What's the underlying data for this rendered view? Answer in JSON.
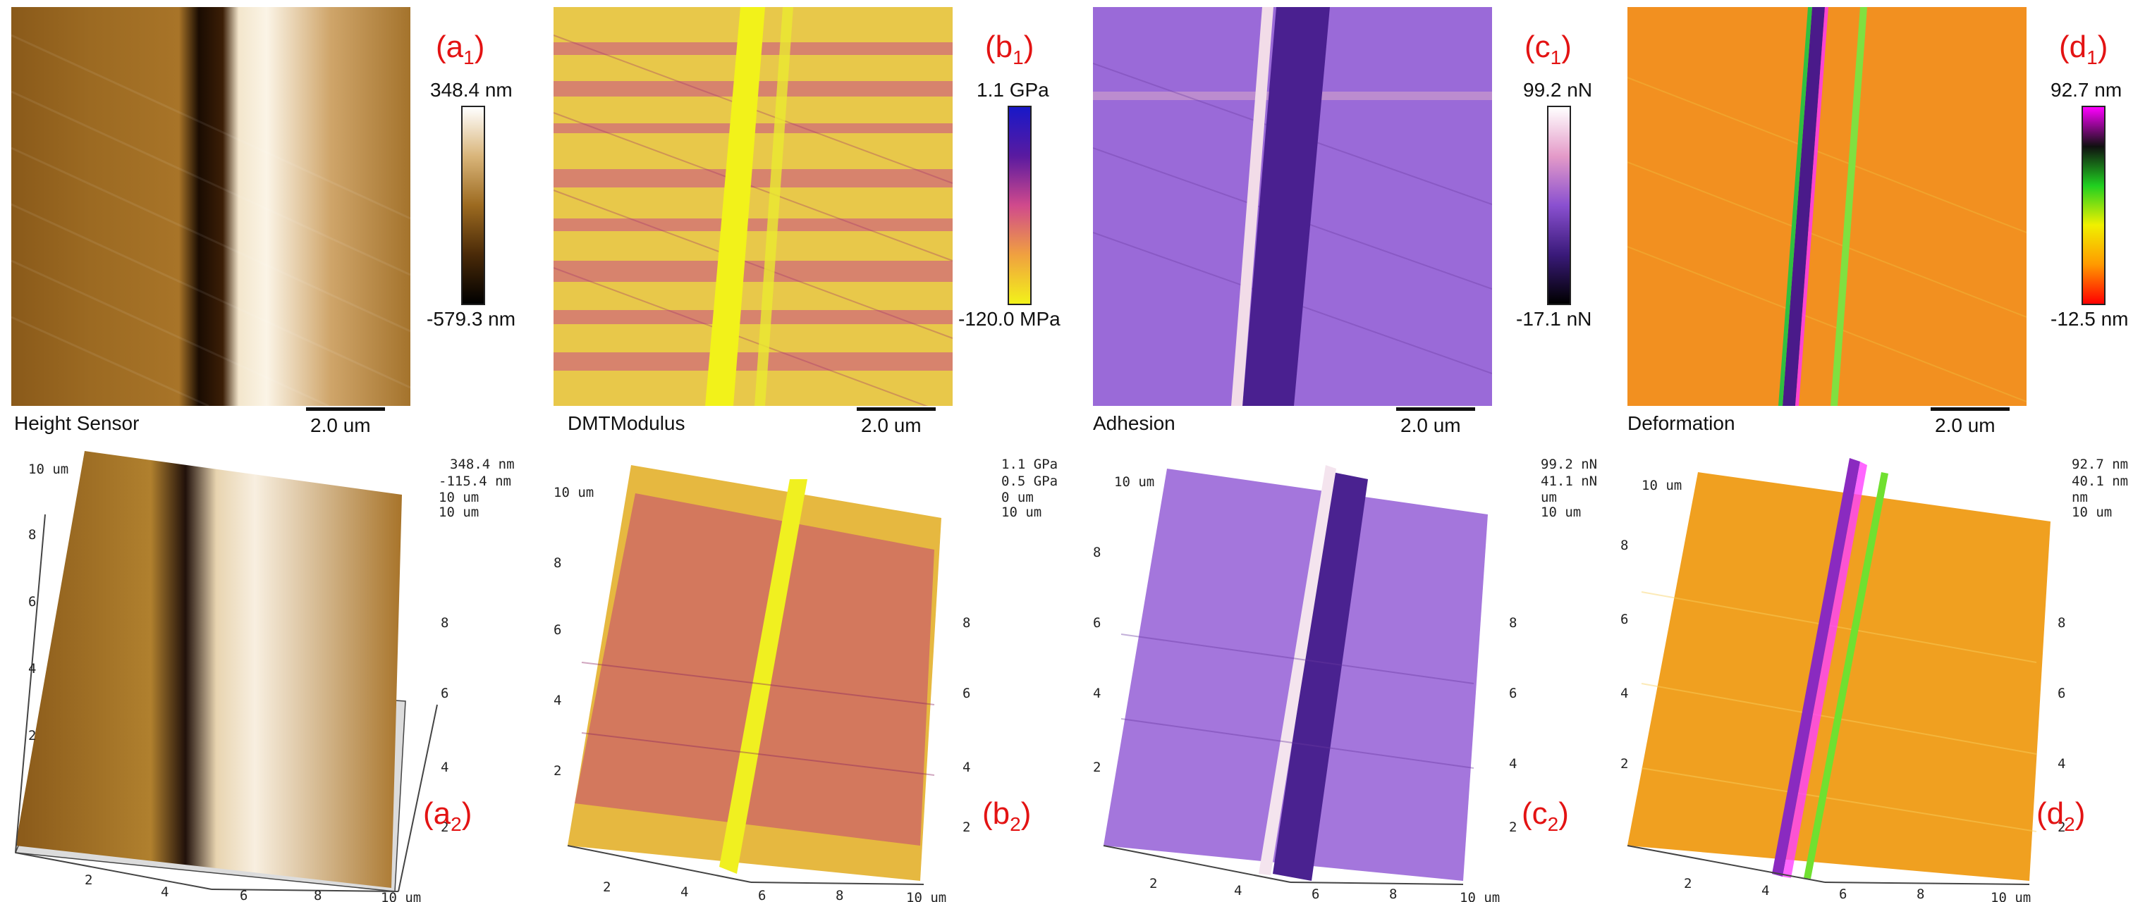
{
  "panels": [
    {
      "id": "a",
      "letter": "a",
      "sub1": "1",
      "sub2": "2",
      "map_title": "Height Sensor",
      "scale_bar": "2.0 um",
      "colorbar_max": "348.4 nm",
      "colorbar_min": "-579.3 nm",
      "colors": [
        "#000000",
        "#4a2a08",
        "#9c6a20",
        "#d9b57a",
        "#ffffff"
      ],
      "z_top": "348.4 nm",
      "z_second": "-115.4 nm",
      "z_axis_um": "10 um",
      "z_axis_um2": "10 um"
    },
    {
      "id": "b",
      "letter": "b",
      "sub1": "1",
      "sub2": "2",
      "map_title": "DMTModulus",
      "scale_bar": "2.0 um",
      "colorbar_max": "1.1 GPa",
      "colorbar_min": "-120.0 MPa",
      "colors": [
        "#f2f21a",
        "#f0a040",
        "#d04a8c",
        "#5a1aa0",
        "#1818c8"
      ],
      "z_top": "1.1 GPa",
      "z_second": "0.5 GPa",
      "z_axis_um": "0 um",
      "z_axis_um2": "10 um"
    },
    {
      "id": "c",
      "letter": "c",
      "sub1": "1",
      "sub2": "2",
      "map_title": "Adhesion",
      "scale_bar": "2.0 um",
      "colorbar_max": "99.2 nN",
      "colorbar_min": "-17.1 nN",
      "colors": [
        "#000000",
        "#3a1a7a",
        "#8a50d0",
        "#e49ac8",
        "#ffffff"
      ],
      "z_top": "99.2 nN",
      "z_second": "41.1 nN",
      "z_axis_um": "um",
      "z_axis_um2": "10 um"
    },
    {
      "id": "d",
      "letter": "d",
      "sub1": "1",
      "sub2": "2",
      "map_title": "Deformation",
      "scale_bar": "2.0 um",
      "colorbar_max": "92.7 nm",
      "colorbar_min": "-12.5 nm",
      "colors": [
        "#ff0000",
        "#ff9a00",
        "#f0f000",
        "#20d020",
        "#101010",
        "#ff00ff"
      ],
      "z_top": "92.7 nm",
      "z_second": "40.1 nm",
      "z_axis_um": "nm",
      "z_axis_um2": "10 um"
    }
  ],
  "axis_ticks": {
    "bottom": [
      "2",
      "4",
      "6",
      "8",
      "10 um"
    ],
    "side": [
      "2",
      "4",
      "6",
      "8",
      "10 um"
    ],
    "back": [
      "10 um",
      "2",
      "4",
      "6",
      "8"
    ]
  }
}
